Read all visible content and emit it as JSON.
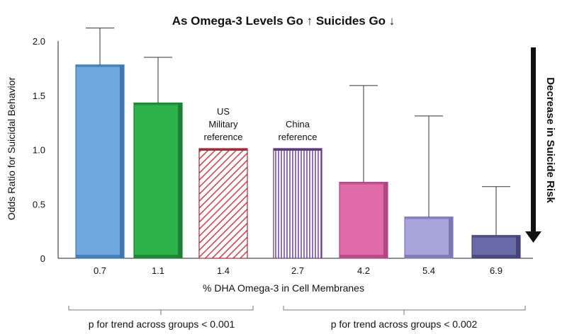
{
  "chart_data": {
    "type": "bar",
    "title": "As Omega-3 Levels Go ↑ Suicides Go ↓",
    "xlabel": "% DHA Omega-3 in Cell Membranes",
    "ylabel": "Odds Ratio for Suicidal Behavior",
    "ylim": [
      0,
      2.0
    ],
    "yticks": [
      "0",
      "0.5",
      "1.0",
      "1.5",
      "2.0"
    ],
    "ytick_values": [
      0,
      0.5,
      1.0,
      1.5,
      2.0
    ],
    "categories": [
      "0.7",
      "1.1",
      "1.4",
      "2.7",
      "4.2",
      "5.4",
      "6.9"
    ],
    "values": [
      1.78,
      1.43,
      1.01,
      1.01,
      0.7,
      0.38,
      0.21
    ],
    "error_upper": [
      2.12,
      1.85,
      null,
      null,
      1.59,
      1.31,
      0.66
    ],
    "colors": [
      "#6fa8dc",
      "#2db34a",
      "#c9404a",
      "#7a4fa3",
      "#e06aaa",
      "#a8a4dc",
      "#6b6aa8"
    ],
    "patterns": [
      "solid",
      "solid",
      "diagonal-hatch",
      "vertical-stripes",
      "solid",
      "solid",
      "solid"
    ],
    "annotations": {
      "us_reference": [
        "US",
        "Military",
        "reference"
      ],
      "china_reference": [
        "China",
        "reference"
      ],
      "risk_arrow": "Decrease in Suicide Risk",
      "trend_left": "p for trend across groups < 0.001",
      "trend_right": "p for trend across groups < 0.002"
    },
    "grid": false,
    "legend": "none"
  }
}
